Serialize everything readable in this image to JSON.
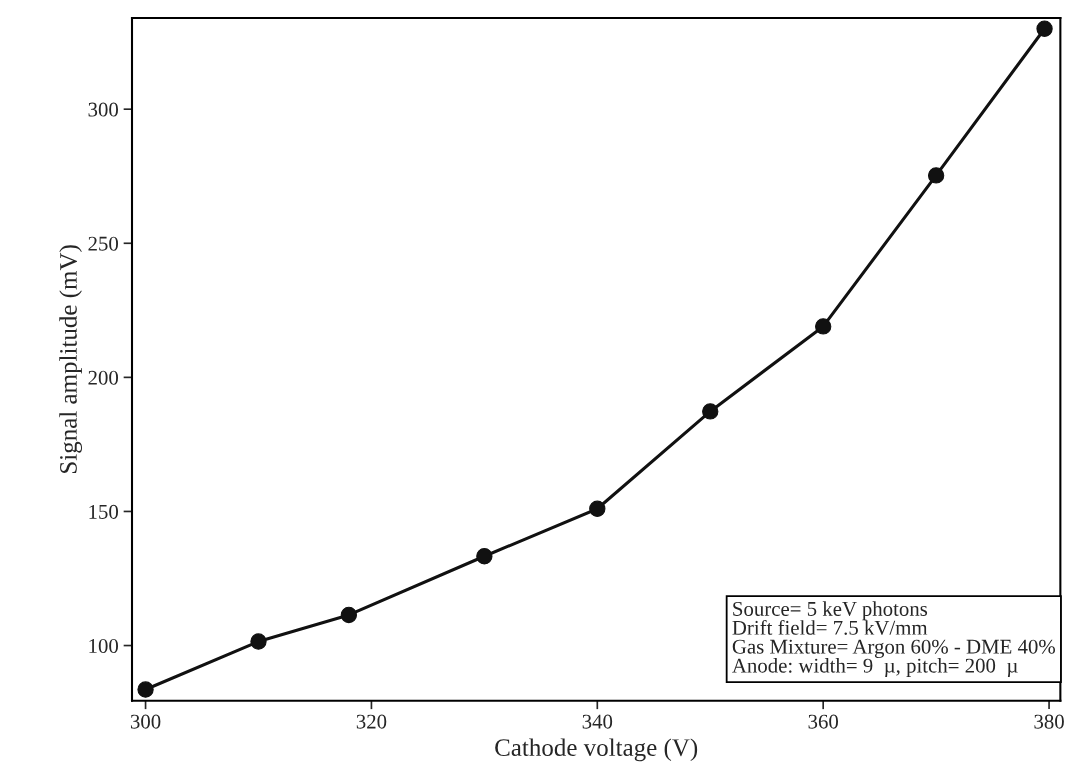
{
  "chart_data": {
    "type": "line",
    "xlabel": "Cathode voltage (V)",
    "ylabel": "Signal amplitude (mV)",
    "x": [
      300,
      310,
      318,
      330,
      340,
      350,
      360,
      370,
      379.6
    ],
    "series": [
      {
        "color": "#111111",
        "values": [
          83.6,
          101.5,
          111.4,
          133.3,
          151,
          187.3,
          219,
          275.3,
          330
        ]
      }
    ],
    "xlim": [
      298.8,
      381
    ],
    "ylim": [
      79.4,
      334
    ],
    "xticks": [
      300,
      320,
      340,
      360,
      380
    ],
    "yticks": [
      100,
      150,
      200,
      250,
      300
    ],
    "marker": "circle",
    "line_style": "solid",
    "grid": false,
    "annotations": [
      "Source= 5 keV photons\nDrift field= 7.5 kV/mm\nGas Mixture= Argon 60% - DME 40%\nAnode: width= 9  µ, pitch= 200  µ"
    ]
  }
}
